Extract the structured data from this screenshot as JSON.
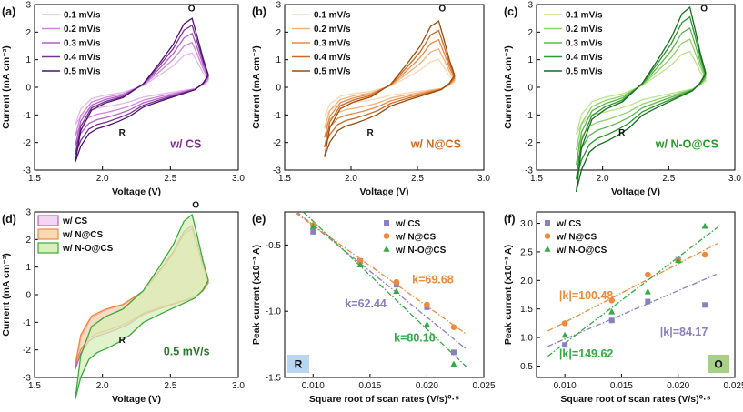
{
  "figure": {
    "panels": [
      "(a)",
      "(b)",
      "(c)",
      "(d)",
      "(e)",
      "(f)"
    ]
  },
  "chart_data": [
    {
      "type": "line",
      "panel_label": "(a)",
      "xlabel": "Voltage (V)",
      "ylabel": "Current (mA cm⁻²)",
      "xlim": [
        1.5,
        3.0
      ],
      "ylim": [
        -3,
        3
      ],
      "xticks": [
        1.5,
        2.0,
        2.5,
        3.0
      ],
      "yticks": [
        -3,
        -2,
        -1,
        0,
        1,
        2,
        3
      ],
      "legend": [
        "0.1 mV/s",
        "0.2 mV/s",
        "0.3 mV/s",
        "0.4 mV/s",
        "0.5 mV/s"
      ],
      "legend_position": "top-left",
      "annotations": [
        {
          "text": "O",
          "x": 2.63,
          "y": 2.75
        },
        {
          "text": "R",
          "x": 2.12,
          "y": -1.75
        },
        {
          "text": "w/ CS",
          "x": 2.5,
          "y": -2.2
        }
      ],
      "colors": [
        "#e3b8ea",
        "#cf85d9",
        "#b45fc7",
        "#7d2e96",
        "#4a1270"
      ],
      "series_scale": [
        0.5,
        0.65,
        0.78,
        0.9,
        1.0
      ],
      "template_peaks": {
        "anodic": 2.5,
        "cathodic": -1.5
      }
    },
    {
      "type": "line",
      "panel_label": "(b)",
      "xlabel": "Voltage (V)",
      "ylabel": "Current (mA cm⁻²)",
      "xlim": [
        1.5,
        3.0
      ],
      "ylim": [
        -3,
        3
      ],
      "xticks": [
        1.5,
        2.0,
        2.5,
        3.0
      ],
      "yticks": [
        -3,
        -2,
        -1,
        0,
        1,
        2,
        3
      ],
      "legend": [
        "0.1 mV/s",
        "0.2 mV/s",
        "0.3 mV/s",
        "0.4 mV/s",
        "0.5 mV/s"
      ],
      "legend_position": "top-left",
      "annotations": [
        {
          "text": "O",
          "x": 2.66,
          "y": 2.75
        },
        {
          "text": "R",
          "x": 2.12,
          "y": -1.75
        },
        {
          "text": "w/ N@CS",
          "x": 2.45,
          "y": -2.2
        }
      ],
      "colors": [
        "#f9d7b8",
        "#f2b27c",
        "#e68b46",
        "#cc6a22",
        "#9c4a0a"
      ],
      "series_scale": [
        0.42,
        0.58,
        0.72,
        0.86,
        1.0
      ],
      "template_peaks": {
        "anodic": 2.4,
        "cathodic": -1.4
      }
    },
    {
      "type": "line",
      "panel_label": "(c)",
      "xlabel": "Voltage (V)",
      "ylabel": "Current (mA cm⁻²)",
      "xlim": [
        1.5,
        3.0
      ],
      "ylim": [
        -3,
        3
      ],
      "xticks": [
        1.5,
        2.0,
        2.5,
        3.0
      ],
      "yticks": [
        -3,
        -2,
        -1,
        0,
        1,
        2,
        3
      ],
      "legend": [
        "0.1 mV/s",
        "0.2 mV/s",
        "0.3 mV/s",
        "0.4 mV/s",
        "0.5 mV/s"
      ],
      "legend_position": "top-left",
      "annotations": [
        {
          "text": "O",
          "x": 2.74,
          "y": 2.75
        },
        {
          "text": "R",
          "x": 2.12,
          "y": -1.75
        },
        {
          "text": "w/ N-O@CS",
          "x": 2.4,
          "y": -2.2
        }
      ],
      "colors": [
        "#b9e48c",
        "#8fd268",
        "#5fb74a",
        "#2f962f",
        "#146c1e"
      ],
      "series_scale": [
        0.45,
        0.6,
        0.74,
        0.88,
        1.0
      ],
      "template_peaks": {
        "anodic": 2.9,
        "cathodic": -2.1
      }
    },
    {
      "type": "area",
      "panel_label": "(d)",
      "xlabel": "Voltage (V)",
      "ylabel": "Current (mA cm⁻²)",
      "xlim": [
        1.5,
        3.0
      ],
      "ylim": [
        -3,
        3
      ],
      "xticks": [
        1.5,
        2.0,
        2.5,
        3.0
      ],
      "yticks": [
        -3,
        -2,
        -1,
        0,
        1,
        2,
        3
      ],
      "legend": [
        "w/ CS",
        "w/ N@CS",
        "w/ N-O@CS"
      ],
      "legend_position": "top-left",
      "annotations": [
        {
          "text": "O",
          "x": 2.66,
          "y": 3.15
        },
        {
          "text": "R",
          "x": 2.12,
          "y": -1.75
        },
        {
          "text": "0.5 mV/s",
          "x": 2.45,
          "y": -2.2
        }
      ],
      "series": [
        {
          "name": "w/ CS",
          "color": "#c060c0",
          "fill": "#f2d6f2",
          "anodic_peak": 2.5,
          "cathodic_peak": -1.5
        },
        {
          "name": "w/ N@CS",
          "color": "#f08a3a",
          "fill": "#fbd9b3",
          "anodic_peak": 2.4,
          "cathodic_peak": -1.4
        },
        {
          "name": "w/ N-O@CS",
          "color": "#3aaa3a",
          "fill": "#d7efb8",
          "anodic_peak": 2.9,
          "cathodic_peak": -2.1
        }
      ]
    },
    {
      "type": "scatter",
      "panel_label": "(e)",
      "xlabel": "Square root of scan rates (V/s)⁰·⁵",
      "ylabel": "Peak current (x10⁻³ A)",
      "xlim": [
        0.0075,
        0.025
      ],
      "ylim": [
        -1.5,
        -0.25
      ],
      "xticks": [
        0.01,
        0.015,
        0.02,
        0.025
      ],
      "yticks": [
        -1.5,
        -1.0,
        -0.5
      ],
      "x": [
        0.01,
        0.01414,
        0.01732,
        0.02,
        0.02236
      ],
      "series": [
        {
          "name": "w/ CS",
          "color": "#8c7fbe",
          "marker": "square",
          "values": [
            -0.4,
            -0.62,
            -0.8,
            -0.97,
            -1.31
          ],
          "fit_label": "k=62.44",
          "slope": -62.44
        },
        {
          "name": "w/ N@CS",
          "color": "#f08a3a",
          "marker": "circle",
          "values": [
            -0.35,
            -0.62,
            -0.78,
            -0.95,
            -1.12
          ],
          "fit_label": "k=69.68",
          "slope": -69.68
        },
        {
          "name": "w/ N-O@CS",
          "color": "#33aa44",
          "marker": "triangle",
          "values": [
            -0.36,
            -0.65,
            -0.85,
            -1.1,
            -1.4
          ],
          "fit_label": "k=80.16",
          "slope": -80.16
        }
      ],
      "corner_label": "R",
      "legend_position": "top-right"
    },
    {
      "type": "scatter",
      "panel_label": "(f)",
      "xlabel": "Square root of scan rates (V/s)⁰·⁵",
      "ylabel": "Peak current (x10⁻³ A)",
      "xlim": [
        0.0075,
        0.025
      ],
      "ylim": [
        0.3,
        3.2
      ],
      "xticks": [
        0.01,
        0.015,
        0.02,
        0.025
      ],
      "yticks": [
        0.5,
        1.0,
        1.5,
        2.0,
        2.5,
        3.0
      ],
      "x": [
        0.01,
        0.01414,
        0.01732,
        0.02,
        0.02236
      ],
      "series": [
        {
          "name": "w/ CS",
          "color": "#8c7fbe",
          "marker": "square",
          "values": [
            0.87,
            1.3,
            1.63,
            2.36,
            1.57
          ],
          "fit_label": "|k|=84.17",
          "slope": 84.17
        },
        {
          "name": "w/ N@CS",
          "color": "#f08a3a",
          "marker": "circle",
          "values": [
            1.25,
            1.65,
            2.1,
            2.35,
            2.45
          ],
          "fit_label": "|k|=100.48",
          "slope": 100.48
        },
        {
          "name": "w/ N-O@CS",
          "color": "#33aa44",
          "marker": "triangle",
          "values": [
            1.04,
            1.45,
            1.8,
            2.35,
            2.95
          ],
          "fit_label": "|k|=149.62",
          "slope": 149.62
        }
      ],
      "corner_label": "O",
      "legend_position": "top-left"
    }
  ]
}
